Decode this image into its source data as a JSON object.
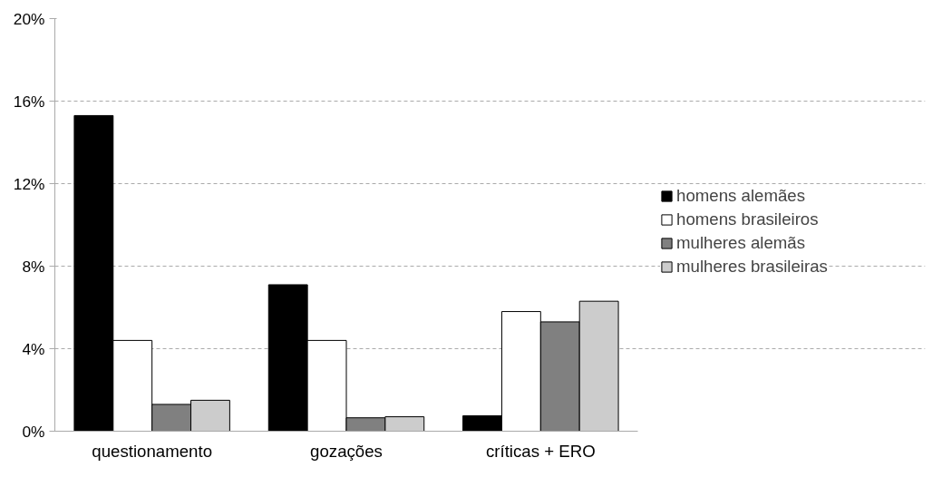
{
  "chart_data": {
    "type": "bar",
    "categories": [
      "questionamento",
      "gozações",
      "críticas + ERO"
    ],
    "series": [
      {
        "name": "homens alemães",
        "color": "#000000",
        "values": [
          15.3,
          7.1,
          0.75
        ]
      },
      {
        "name": "homens brasileiros",
        "color": "#ffffff",
        "values": [
          4.4,
          4.4,
          5.8
        ]
      },
      {
        "name": "mulheres alemãs",
        "color": "#808080",
        "values": [
          1.3,
          0.65,
          5.3
        ]
      },
      {
        "name": "mulheres brasileiras",
        "color": "#cccccc",
        "values": [
          1.5,
          0.7,
          6.3
        ]
      }
    ],
    "ylim": [
      0,
      20
    ],
    "yticks": [
      {
        "value": 0,
        "label": "0%"
      },
      {
        "value": 4,
        "label": "4%"
      },
      {
        "value": 8,
        "label": "8%"
      },
      {
        "value": 12,
        "label": "12%"
      },
      {
        "value": 16,
        "label": "16%"
      },
      {
        "value": 20,
        "label": "20%"
      }
    ],
    "grid": "y",
    "legend": "right"
  }
}
